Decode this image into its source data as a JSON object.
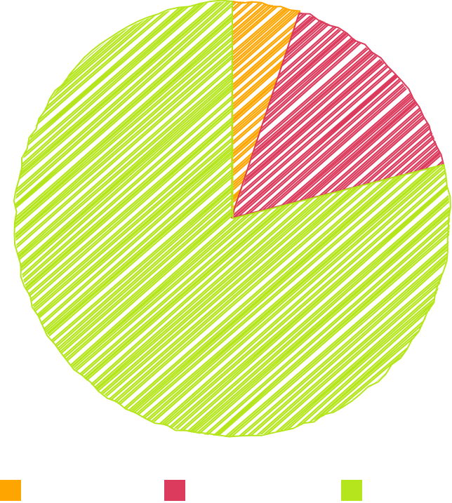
{
  "chart_data": {
    "type": "pie",
    "title": "",
    "style": "hand-drawn hachure",
    "slices": [
      {
        "label": "",
        "value": 5,
        "color": "#FFA500"
      },
      {
        "label": "",
        "value": 16,
        "color": "#DC3B5D"
      },
      {
        "label": "",
        "value": 79,
        "color": "#B5E61D"
      }
    ],
    "legend": {
      "position": "bottom",
      "labels": [
        "",
        "",
        ""
      ]
    },
    "start_angle_deg": 0,
    "direction": "clockwise"
  }
}
